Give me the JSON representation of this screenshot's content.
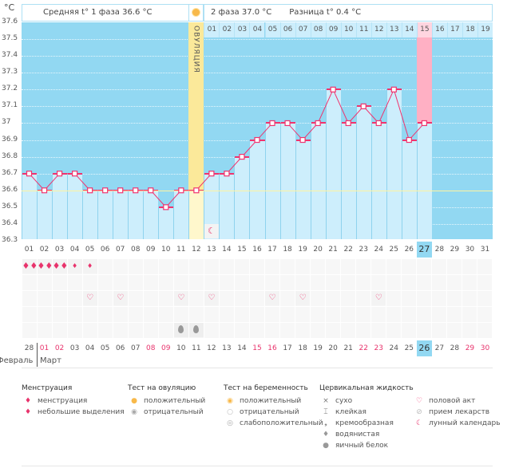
{
  "header": {
    "unit": "°C",
    "phase1": "Средняя t° 1 фаза 36.6 °C",
    "phase2": "2 фаза 37.0 °C",
    "difference": "Разница t° 0.4 °C",
    "ovulation_label": "ОВУЛЯЦИЯ"
  },
  "colors": {
    "background": "#92d8f2",
    "bar": "#cdeefc",
    "line": "#f0336e",
    "ovulation": "#fbe99a",
    "today": "#ffb0c4",
    "coverline": "#fff3a0"
  },
  "chart_data": {
    "type": "bar",
    "ylabel": "°C",
    "ylim": [
      36.3,
      37.6
    ],
    "yticks": [
      "37.6",
      "37.5",
      "37.4",
      "37.3",
      "37.2",
      "37.1",
      "37",
      "36.9",
      "36.8",
      "36.7",
      "36.6",
      "36.5",
      "36.4",
      "36.3"
    ],
    "cycle_days": [
      "01",
      "02",
      "03",
      "04",
      "05",
      "06",
      "07",
      "08",
      "09",
      "10",
      "11",
      "12",
      "13",
      "14",
      "15",
      "16",
      "17",
      "18",
      "19",
      "20",
      "21",
      "22",
      "23",
      "24",
      "25",
      "26",
      "27",
      "28",
      "29",
      "30",
      "31"
    ],
    "temperatures": [
      36.7,
      36.6,
      36.7,
      36.7,
      36.6,
      36.6,
      36.6,
      36.6,
      36.6,
      36.5,
      36.6,
      36.6,
      36.7,
      36.7,
      36.8,
      36.9,
      37.0,
      37.0,
      36.9,
      37.0,
      37.2,
      37.0,
      37.1,
      37.0,
      37.2,
      36.9,
      37.0
    ],
    "coverline": 36.6,
    "ovulation_day": 12,
    "current_day": 27,
    "phase2_days": [
      "01",
      "02",
      "03",
      "04",
      "05",
      "06",
      "07",
      "08",
      "09",
      "10",
      "11",
      "12",
      "13",
      "14",
      "15",
      "16",
      "17",
      "18",
      "19"
    ],
    "phase2_current": "15",
    "dates": [
      "28",
      "01",
      "02",
      "03",
      "04",
      "05",
      "06",
      "07",
      "08",
      "09",
      "10",
      "11",
      "12",
      "13",
      "14",
      "15",
      "16",
      "17",
      "18",
      "19",
      "20",
      "21",
      "22",
      "23",
      "24",
      "25",
      "26",
      "27",
      "28",
      "29",
      "30"
    ],
    "weekend_dates_idx": [
      1,
      2,
      8,
      9,
      15,
      16,
      22,
      23,
      29,
      30
    ],
    "months": [
      "Февраль",
      "Март"
    ]
  },
  "events": {
    "menstruation_heavy_days": [
      1,
      2,
      3
    ],
    "menstruation_light_days": [
      4,
      5
    ],
    "intercourse_days": [
      5,
      7,
      11,
      13,
      17,
      19,
      24
    ],
    "egg_white_days": [
      11,
      12
    ],
    "lunar_days": [
      13
    ]
  },
  "legend": [
    {
      "title": "Менструация",
      "items": [
        {
          "icon": "menstruation-icon",
          "label": "менструация"
        },
        {
          "icon": "spotting-icon",
          "label": "небольшие выделения"
        }
      ]
    },
    {
      "title": "Тест на овуляцию",
      "items": [
        {
          "icon": "ovulation-positive-icon",
          "label": "положительный"
        },
        {
          "icon": "ovulation-negative-icon",
          "label": "отрицательный"
        }
      ]
    },
    {
      "title": "Тест на беременность",
      "items": [
        {
          "icon": "pregnancy-positive-icon",
          "label": "положительный"
        },
        {
          "icon": "pregnancy-negative-icon",
          "label": "отрицательный"
        },
        {
          "icon": "pregnancy-weak-icon",
          "label": "слабоположительный"
        }
      ]
    },
    {
      "title": "Цервикальная жидкость",
      "items": [
        {
          "icon": "dry-icon",
          "label": "сухо"
        },
        {
          "icon": "sticky-icon",
          "label": "клейкая"
        },
        {
          "icon": "creamy-icon",
          "label": "кремообразная"
        },
        {
          "icon": "watery-icon",
          "label": "водянистая"
        },
        {
          "icon": "egg-white-icon",
          "label": "яичный белок"
        }
      ]
    },
    {
      "title": "",
      "items": [
        {
          "icon": "heart-icon",
          "label": "половой акт"
        },
        {
          "icon": "pill-icon",
          "label": "прием лекарств"
        },
        {
          "icon": "moon-icon",
          "label": "лунный календарь"
        }
      ]
    }
  ]
}
